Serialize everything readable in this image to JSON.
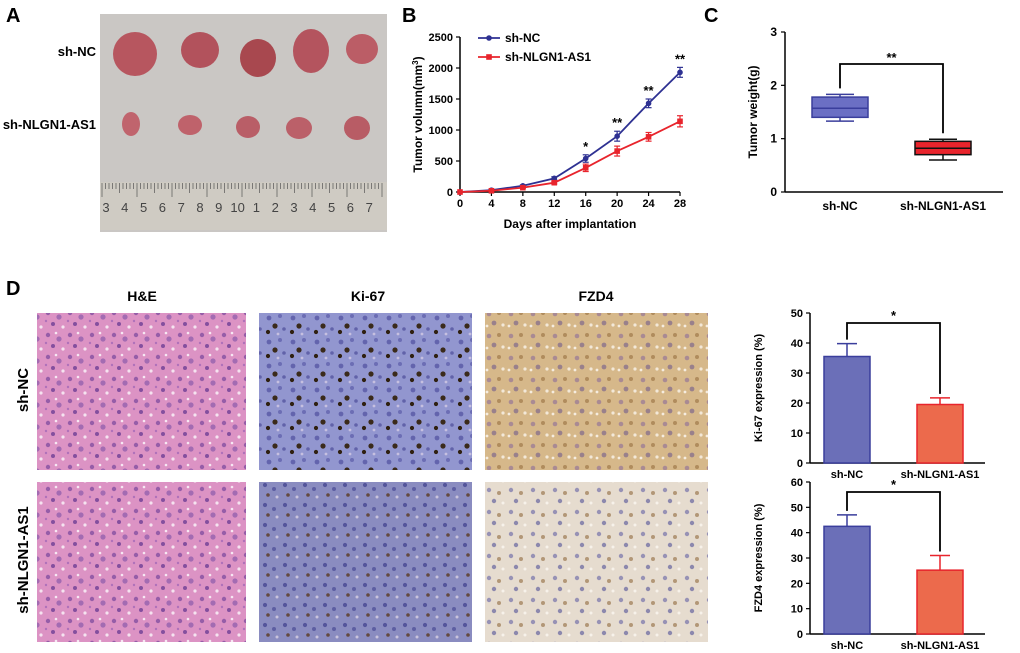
{
  "panels": {
    "A": {
      "letter": "A",
      "row_labels": [
        "sh-NC",
        "sh-NLGN1-AS1"
      ],
      "ruler_digits": [
        "3",
        "4",
        "5",
        "6",
        "7",
        "8",
        "9",
        "10",
        "1",
        "2",
        "3",
        "4",
        "5",
        "6",
        "7"
      ]
    },
    "B": {
      "letter": "B"
    },
    "C": {
      "letter": "C"
    },
    "D": {
      "letter": "D",
      "column_titles": [
        "H&E",
        "Ki-67",
        "FZD4"
      ],
      "row_labels": [
        "sh-NC",
        "sh-NLGN1-AS1"
      ]
    }
  },
  "colors": {
    "navy_series": "#2e3192",
    "red_series": "#e8242c",
    "box_blue": "#6b6fc4",
    "box_red": "#e8242c",
    "bar_blue": "#6b6fb8",
    "bar_orange": "#ec6a4c",
    "he_tissue": "#d98bbf",
    "ihc_blue": "#8a8fc9",
    "ihc_brown": "#c8a56e"
  },
  "chart_data": [
    {
      "id": "B",
      "type": "line",
      "xlabel": "Days after implantation",
      "ylabel": "Tumor volumn(mm3)",
      "ylabel_main": "Tumor volumn(mm",
      "ylabel_sup": "3",
      "ylabel_close": ")",
      "x": [
        0,
        4,
        8,
        12,
        16,
        20,
        24,
        28
      ],
      "xlim": [
        0,
        28
      ],
      "ylim": [
        0,
        2500
      ],
      "xticks": [
        0,
        4,
        8,
        12,
        16,
        20,
        24,
        28
      ],
      "yticks": [
        0,
        500,
        1000,
        1500,
        2000,
        2500
      ],
      "legend_position": "top-left",
      "series": [
        {
          "name": "sh-NC",
          "values": [
            0,
            30,
            100,
            220,
            540,
            900,
            1430,
            1930
          ],
          "errors": [
            0,
            10,
            15,
            25,
            60,
            80,
            70,
            80
          ]
        },
        {
          "name": "sh-NLGN1-AS1",
          "values": [
            0,
            20,
            70,
            150,
            390,
            660,
            890,
            1140
          ],
          "errors": [
            0,
            8,
            12,
            20,
            60,
            80,
            70,
            90
          ]
        }
      ],
      "annotations": [
        {
          "x": 16,
          "text": "*"
        },
        {
          "x": 20,
          "text": "**"
        },
        {
          "x": 24,
          "text": "**"
        },
        {
          "x": 28,
          "text": "**"
        }
      ]
    },
    {
      "id": "C",
      "type": "box",
      "ylabel": "Tumor weight(g)",
      "ylim": [
        0,
        3
      ],
      "yticks": [
        0,
        1,
        2,
        3
      ],
      "categories": [
        "sh-NC",
        "sh-NLGN1-AS1"
      ],
      "boxes": [
        {
          "min": 1.33,
          "q1": 1.4,
          "median": 1.57,
          "q3": 1.78,
          "max": 1.83
        },
        {
          "min": 0.6,
          "q1": 0.7,
          "median": 0.82,
          "q3": 0.95,
          "max": 0.99
        }
      ],
      "significance": "**"
    },
    {
      "id": "D-Ki67",
      "type": "bar",
      "ylabel": "Ki-67 expression (%)",
      "ylim": [
        0,
        50
      ],
      "yticks": [
        0,
        10,
        20,
        30,
        40,
        50
      ],
      "categories": [
        "sh-NC",
        "sh-NLGN1-AS1"
      ],
      "values": [
        35.5,
        19.5
      ],
      "errors": [
        4.3,
        2.2
      ],
      "significance": "*"
    },
    {
      "id": "D-FZD4",
      "type": "bar",
      "ylabel": "FZD4 expression (%)",
      "ylim": [
        0,
        60
      ],
      "yticks": [
        0,
        10,
        20,
        30,
        40,
        50,
        60
      ],
      "categories": [
        "sh-NC",
        "sh-NLGN1-AS1"
      ],
      "values": [
        42.5,
        25.2
      ],
      "errors": [
        4.5,
        5.8
      ],
      "significance": "*"
    }
  ]
}
